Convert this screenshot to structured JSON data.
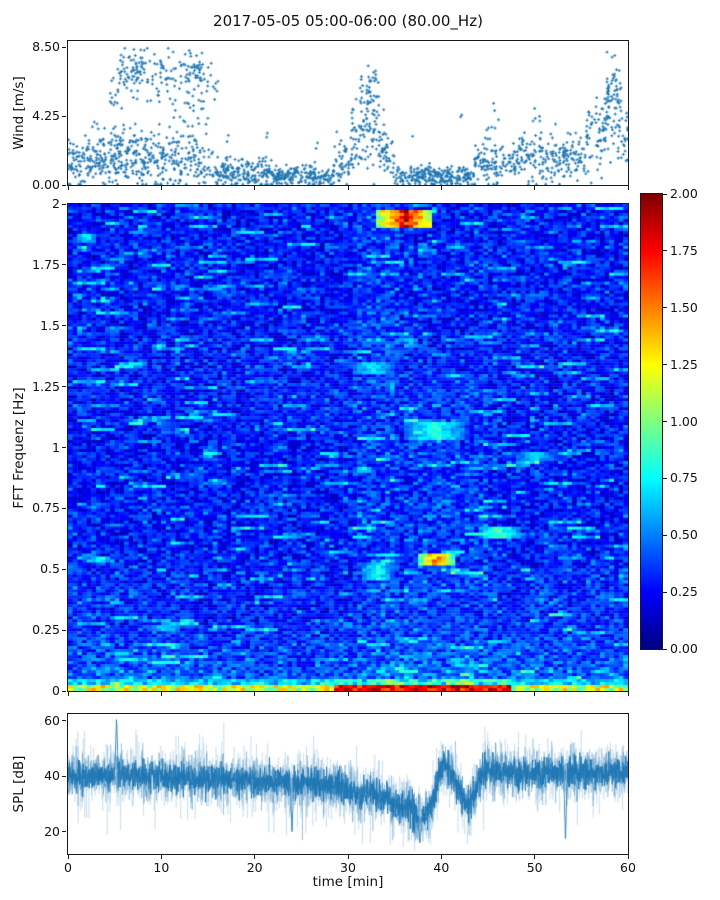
{
  "title": "2017-05-05 05:00-06:00 (80.00_Hz)",
  "colors": {
    "series_blue": "#1f77b4",
    "axis": "#1a1a1a",
    "background": "#ffffff"
  },
  "chart_data": [
    {
      "id": "wind",
      "type": "scatter",
      "ylabel": "Wind [m/s]",
      "ylim": [
        0,
        8.9
      ],
      "xlim": [
        0,
        60
      ],
      "yticks": [
        {
          "v": 0,
          "label": "0.00"
        },
        {
          "v": 4.25,
          "label": "4.25"
        },
        {
          "v": 8.5,
          "label": "8.50"
        }
      ],
      "xticks_unlabeled": [
        0,
        10,
        20,
        30,
        40,
        50,
        60
      ],
      "marker_color": "#1f77b4",
      "marker": "plus",
      "seed": 42,
      "bands": [
        [
          0,
          2,
          1.4,
          0.8,
          60
        ],
        [
          2,
          9,
          1.8,
          0.9,
          260
        ],
        [
          9,
          14,
          1.6,
          0.9,
          140
        ],
        [
          14,
          16,
          1.0,
          0.6,
          40
        ],
        [
          16,
          22,
          0.75,
          0.45,
          180
        ],
        [
          22,
          28.5,
          0.55,
          0.3,
          190
        ],
        [
          28.5,
          31,
          1.6,
          0.9,
          60
        ],
        [
          31,
          33.2,
          3.0,
          1.5,
          40
        ],
        [
          33.2,
          35,
          1.8,
          0.7,
          40
        ],
        [
          35,
          43.5,
          0.55,
          0.3,
          250
        ],
        [
          43.5,
          48,
          1.3,
          0.7,
          120
        ],
        [
          48,
          55.5,
          1.7,
          0.7,
          200
        ],
        [
          55.5,
          57.5,
          2.8,
          1.2,
          50
        ],
        [
          57.5,
          59.5,
          3.5,
          1.2,
          40
        ],
        [
          59.5,
          60,
          3.0,
          0.8,
          15
        ]
      ],
      "clusters": [
        [
          4.5,
          5.6,
          5.5,
          1.0,
          15
        ],
        [
          5.6,
          8.2,
          7.2,
          0.7,
          70
        ],
        [
          8.2,
          11,
          6.8,
          1.0,
          40
        ],
        [
          11,
          14.6,
          7.0,
          0.7,
          60
        ],
        [
          11,
          15,
          5.0,
          0.8,
          30
        ],
        [
          14.6,
          16.2,
          6.2,
          0.8,
          12
        ],
        [
          30.3,
          31.3,
          3.6,
          0.8,
          15
        ],
        [
          31.3,
          33.3,
          5.4,
          1.1,
          60
        ],
        [
          33.3,
          34.3,
          3.2,
          0.9,
          12
        ],
        [
          36.8,
          37.1,
          3.1,
          0.15,
          1
        ],
        [
          42.0,
          42.3,
          4.15,
          0.1,
          2
        ],
        [
          44.8,
          46.2,
          4.0,
          0.5,
          8
        ],
        [
          49.8,
          50.6,
          4.0,
          0.5,
          5
        ],
        [
          17.0,
          17.3,
          3.0,
          0.2,
          2
        ],
        [
          21.2,
          21.5,
          3.2,
          0.2,
          2
        ],
        [
          26.5,
          26.8,
          2.6,
          0.2,
          2
        ],
        [
          56.5,
          57.6,
          4.2,
          0.8,
          12
        ],
        [
          57.6,
          59.3,
          5.9,
          0.9,
          50
        ]
      ]
    },
    {
      "id": "spectrogram",
      "type": "heatmap",
      "ylabel": "FFT Frequenz [Hz]",
      "ylim": [
        0,
        2
      ],
      "xlim": [
        0,
        60
      ],
      "yticks": [
        {
          "v": 2,
          "label": "2"
        },
        {
          "v": 1.75,
          "label": "1.75"
        },
        {
          "v": 1.5,
          "label": "1.5"
        },
        {
          "v": 1.25,
          "label": "1.25"
        },
        {
          "v": 1,
          "label": "1"
        },
        {
          "v": 0.75,
          "label": "0.75"
        },
        {
          "v": 0.5,
          "label": "0.5"
        },
        {
          "v": 0.25,
          "label": "0.25"
        },
        {
          "v": 0,
          "label": "0"
        }
      ],
      "xticks_unlabeled": [
        0,
        10,
        20,
        30,
        40,
        50,
        60
      ],
      "colormap": "jet",
      "clim": [
        0,
        2
      ],
      "seed": 7,
      "grid": {
        "nt": 120,
        "nf": 163
      },
      "noise": {
        "base": 0.1,
        "span": 0.34,
        "streak_prob": 0.022,
        "streak_gain": 0.3
      },
      "low_freq_boost": {
        "f_max": 0.3,
        "gain": 0.22
      },
      "bottom_band": {
        "f_max": 0.05,
        "t_hot": [
          28.5,
          47.5
        ]
      },
      "column_boosts": [
        {
          "t": [
            31,
            35.5
          ],
          "fmax": 2,
          "gain": 0.07
        },
        {
          "t": [
            36,
            45
          ],
          "fmax": 1.3,
          "gain": 0.06
        },
        {
          "t": [
            45,
            60
          ],
          "fmax": 0.5,
          "gain": 0.04
        },
        {
          "t": [
            0,
            12
          ],
          "fmax": 0.5,
          "gain": 0.03
        }
      ],
      "features": [
        {
          "t": [
            33,
            39.2
          ],
          "f": [
            1.9,
            1.975
          ],
          "v": 1.9
        },
        {
          "t": [
            34.6,
            37.4
          ],
          "f": [
            1.925,
            1.955
          ],
          "v": 2.0
        },
        {
          "t": [
            37.6,
            41.4
          ],
          "f": [
            0.515,
            0.56
          ],
          "v": 1.6
        },
        {
          "t": [
            36,
            42.5
          ],
          "f": [
            1.03,
            1.11
          ],
          "v": 0.9
        },
        {
          "t": [
            44,
            48.5
          ],
          "f": [
            0.63,
            0.675
          ],
          "v": 0.95
        },
        {
          "t": [
            31.5,
            34.8
          ],
          "f": [
            0.46,
            0.53
          ],
          "v": 0.85
        },
        {
          "t": [
            0.8,
            3
          ],
          "f": [
            1.845,
            1.875
          ],
          "v": 0.8
        },
        {
          "t": [
            30.5,
            35
          ],
          "f": [
            1.3,
            1.345
          ],
          "v": 0.8
        },
        {
          "t": [
            48,
            52
          ],
          "f": [
            0.95,
            0.985
          ],
          "v": 0.75
        },
        {
          "t": [
            9,
            12
          ],
          "f": [
            0.24,
            0.27
          ],
          "v": 0.8
        }
      ],
      "colorbar": {
        "ticks": [
          {
            "v": 2,
            "label": "2.00"
          },
          {
            "v": 1.75,
            "label": "1.75"
          },
          {
            "v": 1.5,
            "label": "1.50"
          },
          {
            "v": 1.25,
            "label": "1.25"
          },
          {
            "v": 1,
            "label": "1.00"
          },
          {
            "v": 0.75,
            "label": "0.75"
          },
          {
            "v": 0.5,
            "label": "0.50"
          },
          {
            "v": 0.25,
            "label": "0.25"
          },
          {
            "v": 0,
            "label": "0.00"
          }
        ]
      }
    },
    {
      "id": "spl",
      "type": "line",
      "ylabel": "SPL [dB]",
      "xlabel": "time [min]",
      "ylim": [
        12,
        62.5
      ],
      "xlim": [
        0,
        60
      ],
      "yticks": [
        {
          "v": 20,
          "label": "20"
        },
        {
          "v": 40,
          "label": "40"
        },
        {
          "v": 60,
          "label": "60"
        }
      ],
      "xticks": [
        {
          "v": 0,
          "label": "0"
        },
        {
          "v": 10,
          "label": "10"
        },
        {
          "v": 20,
          "label": "20"
        },
        {
          "v": 30,
          "label": "30"
        },
        {
          "v": 40,
          "label": "40"
        },
        {
          "v": 50,
          "label": "50"
        },
        {
          "v": 60,
          "label": "60"
        }
      ],
      "line_color": "#1f77b4",
      "seed": 1234,
      "noise_amp": 3.2,
      "mean_keypoints": [
        [
          0,
          40
        ],
        [
          3,
          40
        ],
        [
          6,
          40.3
        ],
        [
          9,
          39.8
        ],
        [
          12,
          39.2
        ],
        [
          15,
          39
        ],
        [
          18,
          38.6
        ],
        [
          21,
          38.2
        ],
        [
          24,
          37.6
        ],
        [
          26,
          37.2
        ],
        [
          28,
          37
        ],
        [
          29.5,
          36.2
        ],
        [
          30.5,
          34.5
        ],
        [
          31.3,
          32
        ],
        [
          32,
          33.5
        ],
        [
          32.8,
          34.5
        ],
        [
          33.5,
          30.5
        ],
        [
          34.2,
          32.5
        ],
        [
          35,
          29.5
        ],
        [
          35.8,
          28
        ],
        [
          36.5,
          29
        ],
        [
          37.2,
          26
        ],
        [
          38,
          25
        ],
        [
          38.6,
          27
        ],
        [
          39.2,
          33
        ],
        [
          39.8,
          41
        ],
        [
          40.3,
          44
        ],
        [
          40.8,
          43
        ],
        [
          41.4,
          39
        ],
        [
          42,
          34
        ],
        [
          42.5,
          31
        ],
        [
          43,
          30.5
        ],
        [
          43.5,
          33
        ],
        [
          44,
          39
        ],
        [
          44.5,
          42
        ],
        [
          45.5,
          42
        ],
        [
          47,
          41.5
        ],
        [
          49,
          41
        ],
        [
          51,
          41.3
        ],
        [
          53,
          41
        ],
        [
          55,
          41.2
        ],
        [
          57,
          41
        ],
        [
          59,
          41.8
        ],
        [
          60,
          42
        ]
      ],
      "spikes": [
        {
          "t": 5.2,
          "v": 61
        },
        {
          "t": 24,
          "v": 19
        },
        {
          "t": 37.7,
          "v": 16
        },
        {
          "t": 53.3,
          "v": 17
        }
      ]
    }
  ]
}
